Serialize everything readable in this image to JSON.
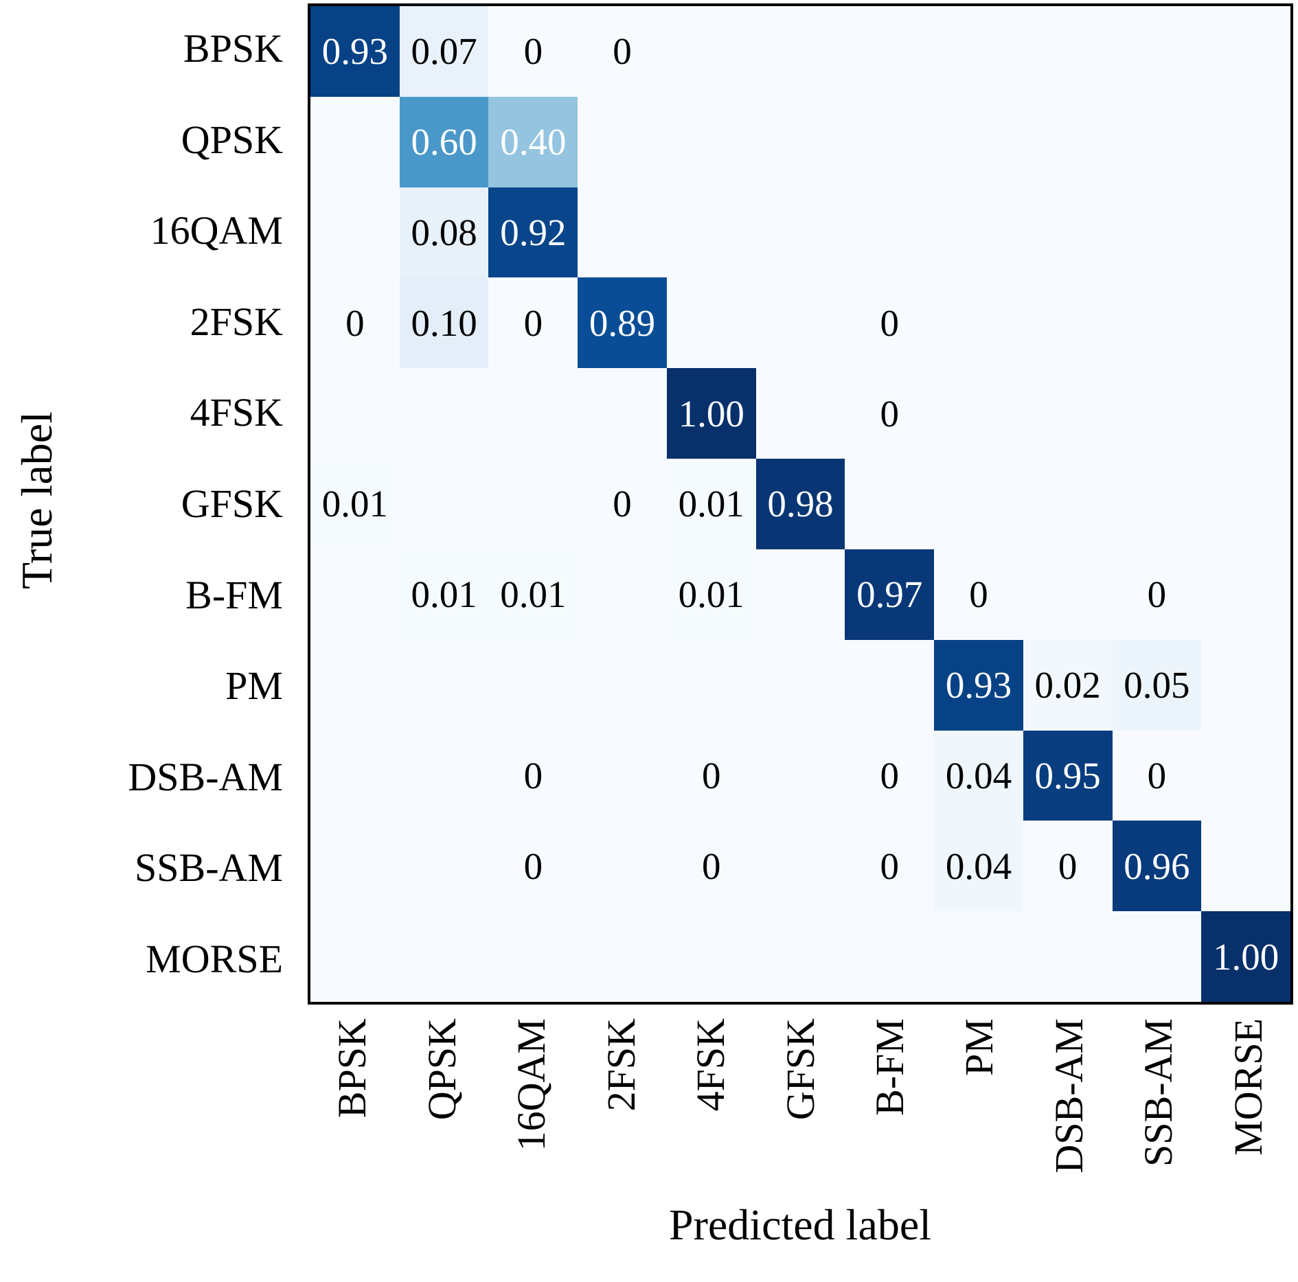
{
  "figure": {
    "xlabel": "Predicted label",
    "ylabel": "True label"
  },
  "colors": {
    "cmap_low": "#f7fbff",
    "cmap_high": "#08306b",
    "cell_text_dark": "#000000",
    "cell_text_light": "#ffffff",
    "axis": "#000000",
    "background": "#ffffff"
  },
  "chart_data": {
    "type": "heatmap",
    "colormap": "Blues",
    "xlabel": "Predicted label",
    "ylabel": "True label",
    "value_range": [
      0,
      1
    ],
    "x_categories": [
      "BPSK",
      "QPSK",
      "16QAM",
      "2FSK",
      "4FSK",
      "GFSK",
      "B-FM",
      "PM",
      "DSB-AM",
      "SSB-AM",
      "MORSE"
    ],
    "y_categories": [
      "BPSK",
      "QPSK",
      "16QAM",
      "2FSK",
      "4FSK",
      "GFSK",
      "B-FM",
      "PM",
      "DSB-AM",
      "SSB-AM",
      "MORSE"
    ],
    "matrix": [
      [
        0.93,
        0.07,
        0,
        0,
        null,
        null,
        null,
        null,
        null,
        null,
        null
      ],
      [
        null,
        0.6,
        0.4,
        null,
        null,
        null,
        null,
        null,
        null,
        null,
        null
      ],
      [
        null,
        0.08,
        0.92,
        null,
        null,
        null,
        null,
        null,
        null,
        null,
        null
      ],
      [
        0,
        0.1,
        0,
        0.89,
        null,
        null,
        0,
        null,
        null,
        null,
        null
      ],
      [
        null,
        null,
        null,
        null,
        1.0,
        null,
        0,
        null,
        null,
        null,
        null
      ],
      [
        0.01,
        null,
        null,
        0,
        0.01,
        0.98,
        null,
        null,
        null,
        null,
        null
      ],
      [
        null,
        0.01,
        0.01,
        null,
        0.01,
        null,
        0.97,
        0,
        null,
        0,
        null
      ],
      [
        null,
        null,
        null,
        null,
        null,
        null,
        null,
        0.93,
        0.02,
        0.05,
        null
      ],
      [
        null,
        null,
        0,
        null,
        0,
        null,
        0,
        0.04,
        0.95,
        0,
        null
      ],
      [
        null,
        null,
        0,
        null,
        0,
        null,
        0,
        0.04,
        0,
        0.96,
        null
      ],
      [
        null,
        null,
        null,
        null,
        null,
        null,
        null,
        null,
        null,
        null,
        1.0
      ]
    ],
    "cell_text": [
      [
        "0.93",
        "0.07",
        "0",
        "0",
        "",
        "",
        "",
        "",
        "",
        "",
        ""
      ],
      [
        "",
        "0.60",
        "0.40",
        "",
        "",
        "",
        "",
        "",
        "",
        "",
        ""
      ],
      [
        "",
        "0.08",
        "0.92",
        "",
        "",
        "",
        "",
        "",
        "",
        "",
        ""
      ],
      [
        "0",
        "0.10",
        "0",
        "0.89",
        "",
        "",
        "0",
        "",
        "",
        "",
        ""
      ],
      [
        "",
        "",
        "",
        "",
        "1.00",
        "",
        "0",
        "",
        "",
        "",
        ""
      ],
      [
        "0.01",
        "",
        "",
        "0",
        "0.01",
        "0.98",
        "",
        "",
        "",
        "",
        ""
      ],
      [
        "",
        "0.01",
        "0.01",
        "",
        "0.01",
        "",
        "0.97",
        "0",
        "",
        "0",
        ""
      ],
      [
        "",
        "",
        "",
        "",
        "",
        "",
        "",
        "0.93",
        "0.02",
        "0.05",
        ""
      ],
      [
        "",
        "",
        "0",
        "",
        "0",
        "",
        "0",
        "0.04",
        "0.95",
        "0",
        ""
      ],
      [
        "",
        "",
        "0",
        "",
        "0",
        "",
        "0",
        "0.04",
        "0",
        "0.96",
        ""
      ],
      [
        "",
        "",
        "",
        "",
        "",
        "",
        "",
        "",
        "",
        "",
        "1.00"
      ]
    ]
  }
}
